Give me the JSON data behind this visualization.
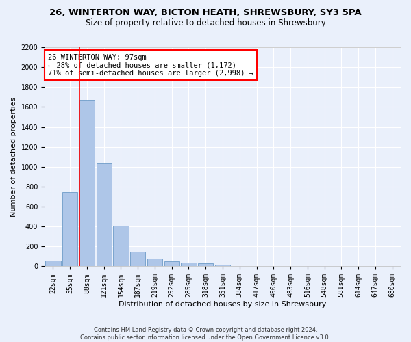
{
  "title_line1": "26, WINTERTON WAY, BICTON HEATH, SHREWSBURY, SY3 5PA",
  "title_line2": "Size of property relative to detached houses in Shrewsbury",
  "xlabel": "Distribution of detached houses by size in Shrewsbury",
  "ylabel": "Number of detached properties",
  "footer": "Contains HM Land Registry data © Crown copyright and database right 2024.\nContains public sector information licensed under the Open Government Licence v3.0.",
  "bin_labels": [
    "22sqm",
    "55sqm",
    "88sqm",
    "121sqm",
    "154sqm",
    "187sqm",
    "219sqm",
    "252sqm",
    "285sqm",
    "318sqm",
    "351sqm",
    "384sqm",
    "417sqm",
    "450sqm",
    "483sqm",
    "516sqm",
    "548sqm",
    "581sqm",
    "614sqm",
    "647sqm",
    "680sqm"
  ],
  "bar_values": [
    55,
    745,
    1672,
    1035,
    410,
    150,
    80,
    48,
    38,
    28,
    18,
    0,
    0,
    0,
    0,
    0,
    0,
    0,
    0,
    0,
    0
  ],
  "bar_color": "#aec6e8",
  "bar_edgecolor": "#5a8fc0",
  "vline_color": "red",
  "vline_bin_index": 2,
  "annotation_text": "26 WINTERTON WAY: 97sqm\n← 28% of detached houses are smaller (1,172)\n71% of semi-detached houses are larger (2,998) →",
  "annotation_box_color": "white",
  "annotation_box_edgecolor": "red",
  "ylim": [
    0,
    2200
  ],
  "yticks": [
    0,
    200,
    400,
    600,
    800,
    1000,
    1200,
    1400,
    1600,
    1800,
    2000,
    2200
  ],
  "background_color": "#eaf0fb",
  "grid_color": "white",
  "title_fontsize": 9.5,
  "subtitle_fontsize": 8.5,
  "axis_label_fontsize": 8,
  "tick_fontsize": 7,
  "annotation_fontsize": 7.5,
  "footer_fontsize": 6
}
